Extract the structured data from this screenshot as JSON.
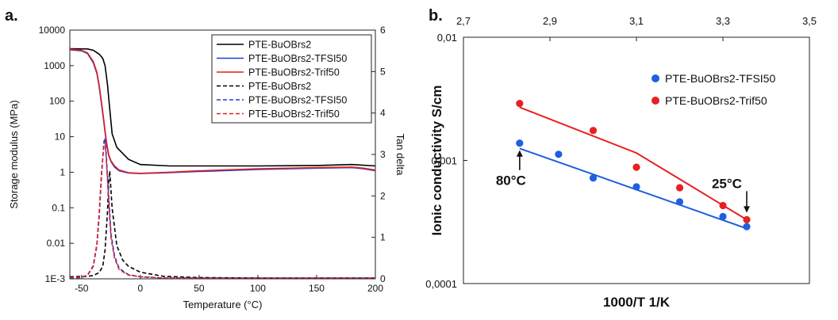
{
  "chart_data": [
    {
      "type": "line",
      "panel_label": "a.",
      "xlabel": "Temperature (°C)",
      "ylabel": "Storage modulus (MPa)",
      "y2label": "Tan delta",
      "xlim": [
        -60,
        200
      ],
      "ylim": [
        0.001,
        10000
      ],
      "yscale": "log",
      "y2lim": [
        0,
        6
      ],
      "x_ticks": [
        "-50",
        "0",
        "50",
        "100",
        "150",
        "200"
      ],
      "y_ticks": [
        "1E-3",
        "0.01",
        "0.1",
        "1",
        "10",
        "100",
        "1000",
        "10000"
      ],
      "y2_ticks": [
        "0",
        "1",
        "2",
        "3",
        "4",
        "5",
        "6"
      ],
      "legend_position": "top-right",
      "series": [
        {
          "name": "PTE-BuOBrs2",
          "color": "#000000",
          "style": "solid",
          "axis": "left",
          "x": [
            -60,
            -45,
            -40,
            -35,
            -32,
            -30,
            -28,
            -26,
            -24,
            -20,
            -10,
            0,
            25,
            50,
            100,
            150,
            180,
            200
          ],
          "y": [
            3000,
            2950,
            2700,
            2100,
            1600,
            1000,
            300,
            60,
            12,
            5,
            2.3,
            1.65,
            1.5,
            1.5,
            1.5,
            1.55,
            1.65,
            1.5
          ]
        },
        {
          "name": "PTE-BuOBrs2-TFSI50",
          "color": "#1f3fd6",
          "style": "solid",
          "axis": "left",
          "x": [
            -60,
            -50,
            -45,
            -40,
            -37,
            -35,
            -33,
            -31,
            -29,
            -27,
            -25,
            -22,
            -18,
            -10,
            0,
            25,
            50,
            100,
            150,
            180,
            190,
            200
          ],
          "y": [
            2800,
            2600,
            2200,
            1200,
            600,
            250,
            80,
            25,
            7,
            3,
            2,
            1.4,
            1.1,
            0.95,
            0.92,
            0.97,
            1.05,
            1.2,
            1.3,
            1.35,
            1.25,
            1.1
          ]
        },
        {
          "name": "PTE-BuOBrs2-Trif50",
          "color": "#e02020",
          "style": "solid",
          "axis": "left",
          "x": [
            -60,
            -50,
            -45,
            -40,
            -37,
            -35,
            -33,
            -31,
            -29,
            -27,
            -25,
            -22,
            -18,
            -10,
            0,
            25,
            50,
            100,
            150,
            180,
            190,
            200
          ],
          "y": [
            2900,
            2700,
            2300,
            1300,
            650,
            280,
            90,
            28,
            8,
            3.2,
            2.1,
            1.5,
            1.15,
            0.97,
            0.93,
            1.0,
            1.1,
            1.25,
            1.35,
            1.4,
            1.3,
            1.15
          ]
        },
        {
          "name": "PTE-BuOBrs2",
          "color": "#000000",
          "style": "dashed",
          "axis": "right",
          "x": [
            -60,
            -45,
            -40,
            -35,
            -32,
            -30,
            -28,
            -27,
            -26,
            -24,
            -20,
            -15,
            -10,
            0,
            20,
            50,
            100,
            150,
            200
          ],
          "y": [
            0.05,
            0.06,
            0.08,
            0.15,
            0.3,
            0.7,
            1.6,
            2.3,
            2.6,
            1.7,
            0.8,
            0.45,
            0.3,
            0.16,
            0.06,
            0.03,
            0.02,
            0.02,
            0.02
          ]
        },
        {
          "name": "PTE-BuOBrs2-TFSI50",
          "color": "#1f3fd6",
          "style": "dashed",
          "axis": "right",
          "x": [
            -60,
            -50,
            -45,
            -40,
            -37,
            -35,
            -33,
            -31,
            -30,
            -29,
            -27,
            -25,
            -22,
            -18,
            -10,
            0,
            20,
            50,
            100,
            150,
            200
          ],
          "y": [
            0.02,
            0.03,
            0.08,
            0.3,
            0.8,
            1.5,
            2.5,
            3.3,
            3.4,
            3.0,
            2.0,
            1.1,
            0.55,
            0.25,
            0.1,
            0.05,
            0.02,
            0.02,
            0.02,
            0.02,
            0.02
          ]
        },
        {
          "name": "PTE-BuOBrs2-Trif50",
          "color": "#e02020",
          "style": "dashed",
          "axis": "right",
          "x": [
            -60,
            -50,
            -45,
            -40,
            -37,
            -35,
            -33,
            -31,
            -30,
            -29,
            -27,
            -25,
            -22,
            -18,
            -10,
            0,
            20,
            50,
            100,
            150,
            200
          ],
          "y": [
            0.03,
            0.04,
            0.09,
            0.32,
            0.85,
            1.6,
            2.6,
            3.2,
            3.3,
            2.9,
            1.9,
            1.0,
            0.5,
            0.22,
            0.09,
            0.05,
            0.02,
            0.02,
            0.02,
            0.02,
            0.02
          ]
        }
      ]
    },
    {
      "type": "scatter",
      "panel_label": "b.",
      "xlabel": "1000/T 1/K",
      "ylabel": "Ionic conductivity S/cm",
      "xlim": [
        2.7,
        3.5
      ],
      "ylim": [
        0.0001,
        0.01
      ],
      "yscale": "log",
      "x_ticks": [
        "2,7",
        "2,9",
        "3,1",
        "3,3",
        "3,5"
      ],
      "y_ticks": [
        "0,0001",
        "0,001",
        "0,01"
      ],
      "legend_position": "top-right",
      "series": [
        {
          "name": "PTE-BuOBrs2-TFSI50",
          "color": "#1f5fe0",
          "x": [
            2.83,
            2.92,
            3.0,
            3.1,
            3.2,
            3.3,
            3.355
          ],
          "y": [
            0.00138,
            0.00112,
            0.00072,
            0.00061,
            0.00046,
            0.00035,
            0.00029
          ],
          "fit_x": [
            2.83,
            3.355
          ],
          "fit_y": [
            0.00125,
            0.00028
          ]
        },
        {
          "name": "PTE-BuOBrs2-Trif50",
          "color": "#e82020",
          "x": [
            2.83,
            3.0,
            3.1,
            3.2,
            3.3,
            3.355
          ],
          "y": [
            0.0029,
            0.00175,
            0.00088,
            0.0006,
            0.00043,
            0.00033
          ],
          "fit_x": [
            2.83,
            3.1,
            3.355
          ],
          "fit_y": [
            0.0027,
            0.00115,
            0.00033
          ]
        }
      ],
      "annotations": [
        {
          "text": "80°C",
          "x": 2.83,
          "y": 0.00138
        },
        {
          "text": "25°C",
          "x": 3.355,
          "y": 0.00033
        }
      ]
    }
  ]
}
